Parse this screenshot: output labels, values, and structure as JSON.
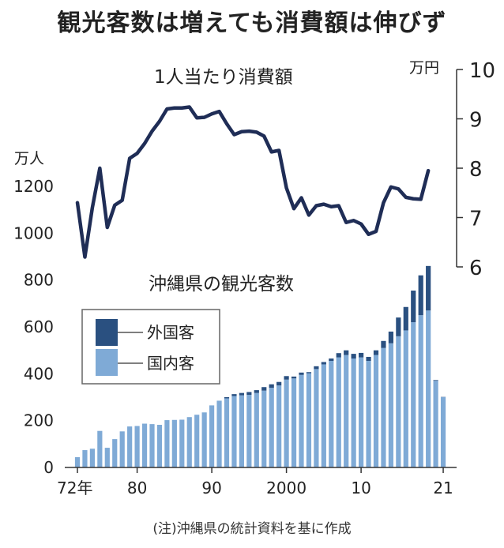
{
  "headline": "観光客数は増えても消費額は伸びず",
  "note": "(注)沖縄県の統計資料を基に作成",
  "colors": {
    "foreign": "#2a5080",
    "domestic": "#7faad6",
    "line": "#1f2d56",
    "axis": "#333333"
  },
  "chart_data": [
    {
      "type": "bar",
      "title": "沖縄県の観光客数",
      "stacked": true,
      "unit": "万人",
      "x": [
        1972,
        1973,
        1974,
        1975,
        1976,
        1977,
        1978,
        1979,
        1980,
        1981,
        1982,
        1983,
        1984,
        1985,
        1986,
        1987,
        1988,
        1989,
        1990,
        1991,
        1992,
        1993,
        1994,
        1995,
        1996,
        1997,
        1998,
        1999,
        2000,
        2001,
        2002,
        2003,
        2004,
        2005,
        2006,
        2007,
        2008,
        2009,
        2010,
        2011,
        2012,
        2013,
        2014,
        2015,
        2016,
        2017,
        2018,
        2019,
        2020,
        2021
      ],
      "series": [
        {
          "name": "国内客",
          "values": [
            44,
            74,
            80,
            156,
            84,
            121,
            154,
            175,
            177,
            187,
            185,
            182,
            202,
            203,
            204,
            215,
            225,
            235,
            265,
            285,
            295,
            305,
            308,
            310,
            318,
            328,
            340,
            350,
            375,
            380,
            395,
            402,
            420,
            440,
            455,
            470,
            480,
            465,
            470,
            455,
            480,
            510,
            530,
            560,
            585,
            620,
            650,
            670,
            370,
            300
          ]
        },
        {
          "name": "外国客",
          "values": [
            0,
            0,
            0,
            0,
            0,
            0,
            0,
            0,
            0,
            0,
            0,
            0,
            0,
            0,
            0,
            0,
            0,
            0,
            0,
            0,
            5,
            8,
            10,
            12,
            12,
            15,
            15,
            15,
            15,
            8,
            10,
            5,
            12,
            10,
            10,
            18,
            20,
            20,
            19,
            17,
            20,
            30,
            50,
            80,
            100,
            135,
            170,
            190,
            3,
            1
          ]
        }
      ],
      "yticks": [
        0,
        200,
        400,
        600,
        800,
        1000,
        1200
      ],
      "ylim": [
        0,
        1250
      ],
      "legend": [
        "外国客",
        "国内客"
      ]
    },
    {
      "type": "line",
      "title": "1人当たり消費額",
      "unit": "万円",
      "x": [
        1972,
        1973,
        1974,
        1975,
        1976,
        1977,
        1978,
        1979,
        1980,
        1981,
        1982,
        1983,
        1984,
        1985,
        1986,
        1987,
        1988,
        1989,
        1990,
        1991,
        1992,
        1993,
        1994,
        1995,
        1996,
        1997,
        1998,
        1999,
        2000,
        2001,
        2002,
        2003,
        2004,
        2005,
        2006,
        2007,
        2008,
        2009,
        2010,
        2011,
        2012,
        2013,
        2014,
        2015,
        2016,
        2017,
        2018,
        2019
      ],
      "values": [
        7.3,
        6.2,
        7.2,
        8.0,
        6.8,
        7.25,
        7.35,
        8.2,
        8.3,
        8.5,
        8.75,
        8.95,
        9.2,
        9.22,
        9.22,
        9.24,
        9.02,
        9.03,
        9.1,
        9.15,
        8.9,
        8.68,
        8.74,
        8.75,
        8.73,
        8.65,
        8.33,
        8.36,
        7.6,
        7.18,
        7.4,
        7.05,
        7.24,
        7.27,
        7.22,
        7.24,
        6.9,
        6.94,
        6.87,
        6.66,
        6.72,
        7.3,
        7.62,
        7.58,
        7.41,
        7.38,
        7.37,
        7.95
      ],
      "yticks": [
        6,
        7,
        8,
        9,
        10
      ],
      "ylim": [
        6,
        10
      ]
    }
  ],
  "x_ticks": [
    {
      "year": 1972,
      "label": "72年"
    },
    {
      "year": 1980,
      "label": "80"
    },
    {
      "year": 1990,
      "label": "90"
    },
    {
      "year": 2000,
      "label": "2000"
    },
    {
      "year": 2010,
      "label": "10"
    },
    {
      "year": 2021,
      "label": "21"
    }
  ]
}
